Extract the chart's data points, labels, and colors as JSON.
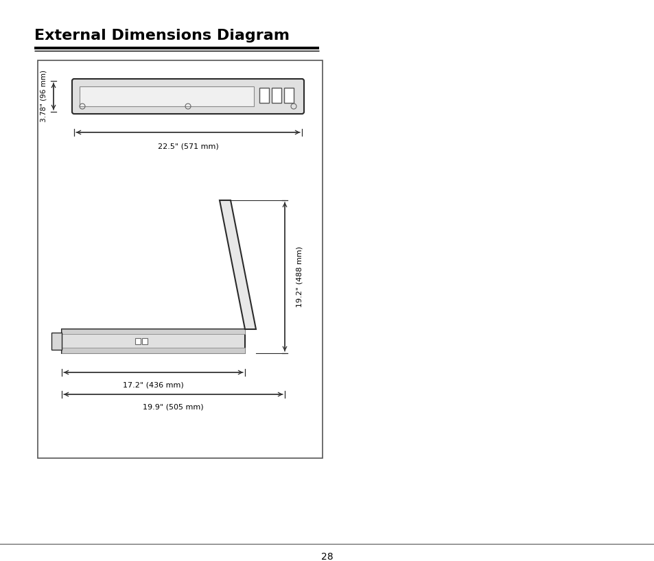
{
  "title": "External Dimensions Diagram",
  "page_number": "28",
  "bg_color": "#ffffff",
  "line_color": "#2a2a2a",
  "text_color": "#000000",
  "top_view": {
    "label_width": "22.5\" (571 mm)",
    "label_height": "3.78\" (96 mm)"
  },
  "side_view": {
    "label_width1": "17.2\" (436 mm)",
    "label_width2": "19.9\" (505 mm)",
    "label_height": "19.2\" (488 mm)"
  }
}
